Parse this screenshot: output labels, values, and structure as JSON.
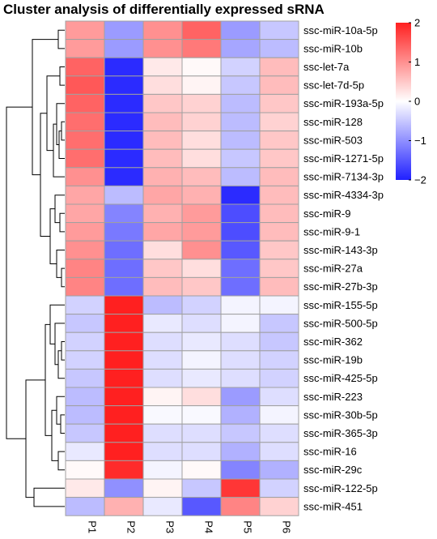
{
  "chart_data": {
    "type": "heatmap",
    "title": "Cluster analysis of differentially expressed sRNA",
    "columns": [
      "P1",
      "P2",
      "P3",
      "P4",
      "P5",
      "P6"
    ],
    "rows": [
      "ssc-miR-10a-5p",
      "ssc-miR-10b",
      "ssc-let-7a",
      "ssc-let-7d-5p",
      "ssc-miR-193a-5p",
      "ssc-miR-128",
      "ssc-miR-503",
      "ssc-miR-1271-5p",
      "ssc-miR-7134-3p",
      "ssc-miR-4334-3p",
      "ssc-miR-9",
      "ssc-miR-9-1",
      "ssc-miR-143-3p",
      "ssc-miR-27a",
      "ssc-miR-27b-3p",
      "ssc-miR-155-5p",
      "ssc-miR-500-5p",
      "ssc-miR-362",
      "ssc-miR-19b",
      "ssc-miR-425-5p",
      "ssc-miR-223",
      "ssc-miR-30b-5p",
      "ssc-miR-365-3p",
      "ssc-miR-16",
      "ssc-miR-29c",
      "ssc-miR-122-5p",
      "ssc-miR-451"
    ],
    "values": [
      [
        0.9,
        -0.9,
        1.0,
        1.4,
        -0.9,
        -0.5
      ],
      [
        0.9,
        -0.9,
        1.0,
        1.2,
        -0.8,
        -0.6
      ],
      [
        1.4,
        -1.9,
        0.2,
        0.05,
        -0.4,
        0.6
      ],
      [
        1.5,
        -1.9,
        0.3,
        0.1,
        -0.5,
        0.6
      ],
      [
        1.4,
        -1.9,
        0.5,
        0.4,
        -0.6,
        0.5
      ],
      [
        1.3,
        -1.9,
        0.6,
        0.4,
        -0.6,
        0.4
      ],
      [
        1.3,
        -1.9,
        0.6,
        0.3,
        -0.6,
        0.5
      ],
      [
        1.3,
        -1.9,
        0.6,
        0.3,
        -0.5,
        0.5
      ],
      [
        1.0,
        -1.9,
        0.7,
        0.6,
        -0.6,
        0.6
      ],
      [
        0.8,
        -0.6,
        0.8,
        0.7,
        -1.9,
        0.6
      ],
      [
        0.8,
        -1.1,
        0.7,
        0.9,
        -1.6,
        0.6
      ],
      [
        0.9,
        -1.2,
        0.8,
        0.9,
        -1.6,
        0.6
      ],
      [
        1.0,
        -1.3,
        0.3,
        1.0,
        -1.5,
        0.5
      ],
      [
        1.1,
        -1.3,
        0.5,
        0.3,
        -1.3,
        0.5
      ],
      [
        1.1,
        -1.3,
        0.6,
        0.5,
        -1.3,
        0.6
      ],
      [
        -0.4,
        2.0,
        -0.6,
        -0.4,
        -0.1,
        -0.1
      ],
      [
        -0.5,
        2.0,
        -0.2,
        -0.3,
        -0.1,
        -0.5
      ],
      [
        -0.4,
        2.0,
        -0.3,
        -0.2,
        -0.3,
        -0.5
      ],
      [
        -0.4,
        2.0,
        -0.3,
        -0.1,
        -0.3,
        -0.4
      ],
      [
        -0.5,
        2.0,
        -0.3,
        -0.2,
        -0.3,
        -0.4
      ],
      [
        -0.6,
        2.0,
        0.1,
        0.3,
        -0.9,
        -0.3
      ],
      [
        -0.6,
        2.0,
        -0.05,
        -0.05,
        -0.7,
        -0.1
      ],
      [
        -0.5,
        2.0,
        -0.3,
        -0.3,
        -0.5,
        -0.3
      ],
      [
        -0.2,
        2.0,
        -0.3,
        -0.3,
        -0.7,
        -0.3
      ],
      [
        0.05,
        1.9,
        -0.1,
        0.05,
        -1.1,
        -0.7
      ],
      [
        0.2,
        -1.0,
        0.1,
        -0.5,
        1.8,
        -0.4
      ],
      [
        -0.6,
        0.7,
        -0.2,
        -1.5,
        1.1,
        0.4
      ]
    ],
    "color_scale": {
      "min": -2,
      "mid": 0,
      "max": 2,
      "low": "#2020ff",
      "midColor": "#ffffff",
      "high": "#ff2020"
    },
    "legend_ticks": [
      2,
      1,
      0,
      -1,
      -2
    ],
    "legend_labels": [
      "2",
      "1",
      "0",
      "−1",
      "−2"
    ],
    "legend": "right",
    "cell_border_color": "#a0a0a0"
  }
}
